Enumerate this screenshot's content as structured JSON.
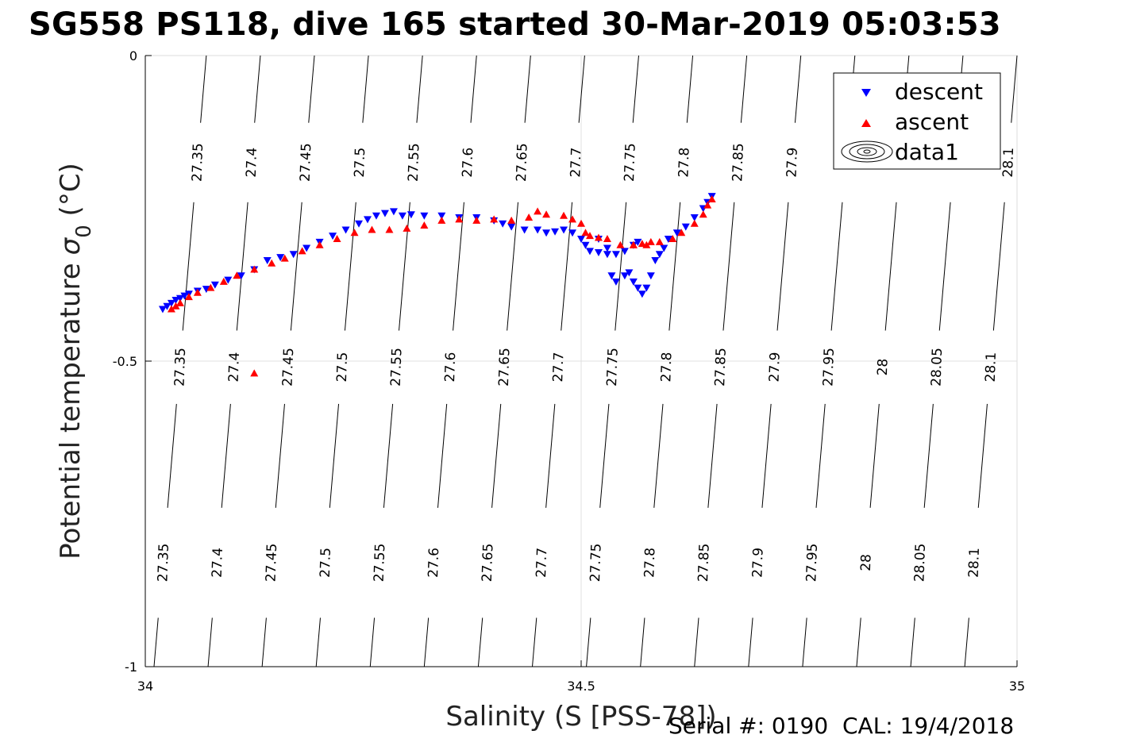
{
  "chart_data": {
    "type": "scatter",
    "title": "SG558 PS118, dive 165 started 30-Mar-2019 05:03:53",
    "xlabel": "Salinity (S [PSS-78])",
    "ylabel": "Potential temperature",
    "ylabel_symbol": "σ",
    "ylabel_subscript": "0",
    "ylabel_unit": " (°C)",
    "xlim": [
      34,
      35
    ],
    "ylim": [
      -1,
      0
    ],
    "xticks": [
      34,
      34.5,
      35
    ],
    "xtick_labels": [
      "34",
      "34.5",
      "35"
    ],
    "yticks": [
      0,
      -0.5,
      -1
    ],
    "ytick_labels": [
      "0",
      "-0.5",
      "-1"
    ],
    "grid": true,
    "legend_position": "top-right",
    "legend": [
      "descent",
      "ascent",
      "data1"
    ],
    "footer": "Serial #: 0190  CAL: 19/4/2018",
    "contour_bottom_values": [
      "27.35",
      "27.4",
      "27.45",
      "27.5",
      "27.55",
      "27.6",
      "27.65",
      "27.7",
      "27.75",
      "27.8",
      "27.85",
      "27.9",
      "27.95",
      "28",
      "28.05",
      "28.1"
    ],
    "contour_mid_values": [
      "27.35",
      "27.4",
      "27.45",
      "27.5",
      "27.55",
      "27.6",
      "27.65",
      "27.7",
      "27.75",
      "27.8",
      "27.85",
      "27.9",
      "27.95",
      "28",
      "28.05",
      "28.1"
    ],
    "contour_top_values": [
      "27.35",
      "27.4",
      "27.45",
      "27.5",
      "27.55",
      "27.6",
      "27.65",
      "27.7",
      "27.75",
      "27.8",
      "27.85",
      "27.9",
      "28.1"
    ],
    "contour_bottom_s": [
      34.01,
      34.072,
      34.134,
      34.196,
      34.258,
      34.32,
      34.382,
      34.444,
      34.506,
      34.568,
      34.63,
      34.692,
      34.754,
      34.816,
      34.878,
      34.94
    ],
    "contour_slope_s_per_degC": 0.06,
    "series": [
      {
        "name": "descent",
        "color": "#0000ff",
        "marker": "triangle-down",
        "points": [
          [
            34.02,
            -0.415
          ],
          [
            34.025,
            -0.41
          ],
          [
            34.03,
            -0.405
          ],
          [
            34.035,
            -0.4
          ],
          [
            34.04,
            -0.397
          ],
          [
            34.045,
            -0.393
          ],
          [
            34.05,
            -0.39
          ],
          [
            34.06,
            -0.385
          ],
          [
            34.07,
            -0.382
          ],
          [
            34.08,
            -0.375
          ],
          [
            34.095,
            -0.367
          ],
          [
            34.11,
            -0.36
          ],
          [
            34.125,
            -0.35
          ],
          [
            34.14,
            -0.335
          ],
          [
            34.155,
            -0.33
          ],
          [
            34.17,
            -0.325
          ],
          [
            34.185,
            -0.315
          ],
          [
            34.2,
            -0.305
          ],
          [
            34.215,
            -0.295
          ],
          [
            34.23,
            -0.285
          ],
          [
            34.245,
            -0.275
          ],
          [
            34.255,
            -0.268
          ],
          [
            34.265,
            -0.262
          ],
          [
            34.275,
            -0.258
          ],
          [
            34.285,
            -0.255
          ],
          [
            34.295,
            -0.262
          ],
          [
            34.305,
            -0.26
          ],
          [
            34.32,
            -0.262
          ],
          [
            34.34,
            -0.262
          ],
          [
            34.36,
            -0.265
          ],
          [
            34.38,
            -0.265
          ],
          [
            34.4,
            -0.27
          ],
          [
            34.41,
            -0.275
          ],
          [
            34.42,
            -0.28
          ],
          [
            34.435,
            -0.285
          ],
          [
            34.45,
            -0.285
          ],
          [
            34.46,
            -0.29
          ],
          [
            34.47,
            -0.288
          ],
          [
            34.48,
            -0.285
          ],
          [
            34.49,
            -0.29
          ],
          [
            34.5,
            -0.3
          ],
          [
            34.505,
            -0.31
          ],
          [
            34.51,
            -0.32
          ],
          [
            34.52,
            -0.322
          ],
          [
            34.53,
            -0.325
          ],
          [
            34.54,
            -0.325
          ],
          [
            34.55,
            -0.32
          ],
          [
            34.56,
            -0.31
          ],
          [
            34.565,
            -0.305
          ],
          [
            34.52,
            -0.3
          ],
          [
            34.53,
            -0.315
          ],
          [
            34.535,
            -0.36
          ],
          [
            34.54,
            -0.37
          ],
          [
            34.55,
            -0.36
          ],
          [
            34.555,
            -0.355
          ],
          [
            34.56,
            -0.37
          ],
          [
            34.565,
            -0.38
          ],
          [
            34.57,
            -0.39
          ],
          [
            34.575,
            -0.38
          ],
          [
            34.58,
            -0.36
          ],
          [
            34.585,
            -0.335
          ],
          [
            34.59,
            -0.325
          ],
          [
            34.595,
            -0.315
          ],
          [
            34.6,
            -0.3
          ],
          [
            34.61,
            -0.29
          ],
          [
            34.62,
            -0.28
          ],
          [
            34.63,
            -0.265
          ],
          [
            34.64,
            -0.25
          ],
          [
            34.645,
            -0.24
          ],
          [
            34.65,
            -0.23
          ]
        ]
      },
      {
        "name": "ascent",
        "color": "#ff0000",
        "marker": "triangle-up",
        "points": [
          [
            34.03,
            -0.415
          ],
          [
            34.035,
            -0.41
          ],
          [
            34.04,
            -0.405
          ],
          [
            34.05,
            -0.395
          ],
          [
            34.06,
            -0.388
          ],
          [
            34.075,
            -0.38
          ],
          [
            34.09,
            -0.37
          ],
          [
            34.105,
            -0.36
          ],
          [
            34.125,
            -0.35
          ],
          [
            34.145,
            -0.34
          ],
          [
            34.16,
            -0.332
          ],
          [
            34.18,
            -0.32
          ],
          [
            34.2,
            -0.31
          ],
          [
            34.22,
            -0.3
          ],
          [
            34.24,
            -0.29
          ],
          [
            34.26,
            -0.285
          ],
          [
            34.28,
            -0.285
          ],
          [
            34.3,
            -0.283
          ],
          [
            34.32,
            -0.278
          ],
          [
            34.34,
            -0.27
          ],
          [
            34.36,
            -0.268
          ],
          [
            34.38,
            -0.27
          ],
          [
            34.4,
            -0.268
          ],
          [
            34.42,
            -0.27
          ],
          [
            34.44,
            -0.265
          ],
          [
            34.45,
            -0.255
          ],
          [
            34.46,
            -0.26
          ],
          [
            34.48,
            -0.262
          ],
          [
            34.49,
            -0.268
          ],
          [
            34.5,
            -0.275
          ],
          [
            34.505,
            -0.29
          ],
          [
            34.51,
            -0.295
          ],
          [
            34.52,
            -0.298
          ],
          [
            34.53,
            -0.3
          ],
          [
            34.545,
            -0.31
          ],
          [
            34.56,
            -0.31
          ],
          [
            34.575,
            -0.31
          ],
          [
            34.59,
            -0.305
          ],
          [
            34.605,
            -0.3
          ],
          [
            34.615,
            -0.29
          ],
          [
            34.63,
            -0.275
          ],
          [
            34.64,
            -0.26
          ],
          [
            34.645,
            -0.245
          ],
          [
            34.65,
            -0.235
          ],
          [
            34.56,
            -0.31
          ],
          [
            34.57,
            -0.308
          ],
          [
            34.58,
            -0.305
          ],
          [
            34.125,
            -0.52
          ]
        ]
      }
    ]
  }
}
